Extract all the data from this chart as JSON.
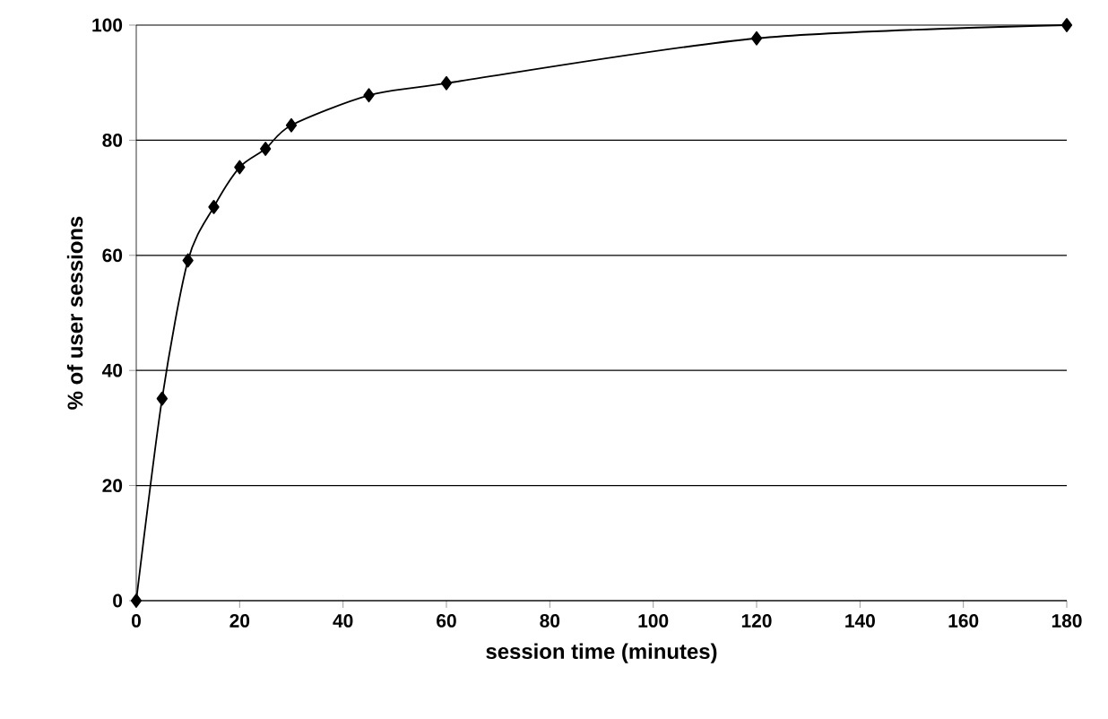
{
  "chart_data": {
    "type": "line",
    "xlabel": "session time (minutes)",
    "ylabel": "% of user sessions",
    "x": [
      0,
      5,
      10,
      15,
      20,
      25,
      30,
      45,
      60,
      120,
      180
    ],
    "values": [
      0,
      35.1,
      59.1,
      68.4,
      75.3,
      78.5,
      82.6,
      87.8,
      89.9,
      97.7,
      100
    ],
    "color": "#000000",
    "marker": "diamond",
    "line_style": "solid",
    "xlim": [
      0,
      180
    ],
    "ylim": [
      0,
      100
    ],
    "xticks": [
      0,
      20,
      40,
      60,
      80,
      100,
      120,
      140,
      160,
      180
    ],
    "yticks": [
      0,
      20,
      40,
      60,
      80,
      100
    ],
    "grid": "y"
  }
}
